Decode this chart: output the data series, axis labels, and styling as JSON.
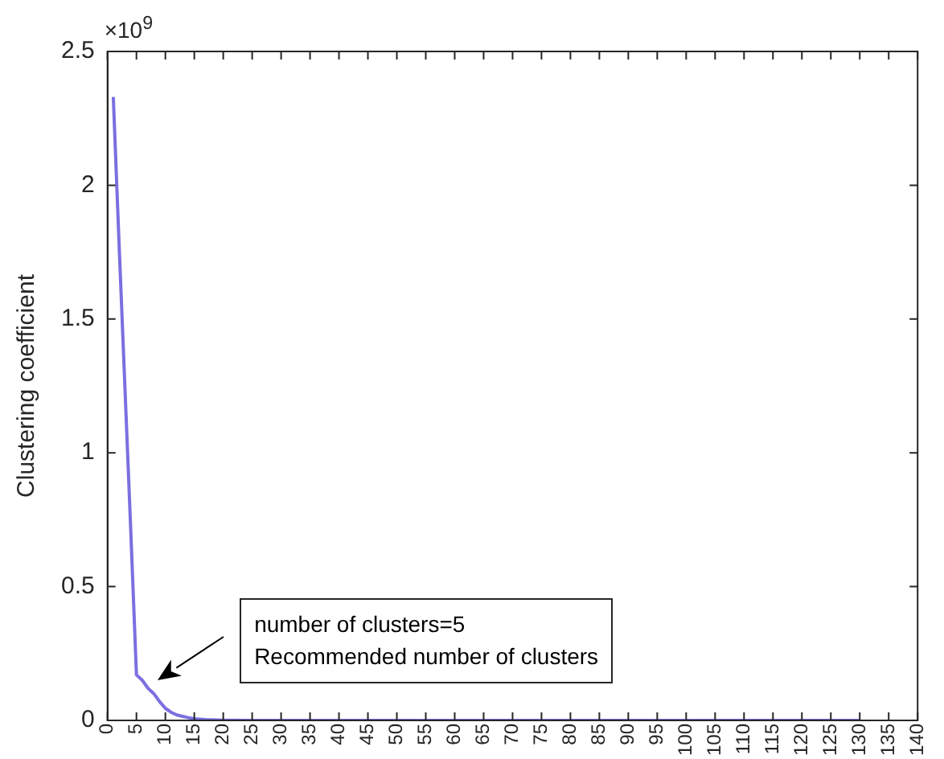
{
  "chart_data": {
    "type": "line",
    "ylabel": "Clustering coefficient",
    "x": [
      1,
      2,
      3,
      4,
      5,
      6,
      7,
      8,
      9,
      10,
      11,
      12,
      13,
      14,
      15,
      17,
      20,
      25,
      30,
      40,
      50,
      60,
      70,
      80,
      90,
      100,
      110,
      120,
      130
    ],
    "series": [
      {
        "color": "#7b6fe0",
        "values": [
          2.33,
          1.78,
          1.25,
          0.72,
          0.17,
          0.15,
          0.12,
          0.1,
          0.07,
          0.045,
          0.03,
          0.02,
          0.015,
          0.01,
          0.006,
          0.003,
          0.001,
          0,
          0,
          0,
          0,
          0,
          0,
          0,
          0,
          0,
          0,
          0,
          0
        ]
      }
    ],
    "xlim": [
      0,
      140
    ],
    "xticks": [
      0,
      5,
      10,
      15,
      20,
      25,
      30,
      35,
      40,
      45,
      50,
      55,
      60,
      65,
      70,
      75,
      80,
      85,
      90,
      95,
      100,
      105,
      110,
      115,
      120,
      125,
      130,
      135,
      140
    ],
    "ylim": [
      0,
      2.5
    ],
    "yticks": [
      0,
      0.5,
      1,
      1.5,
      2,
      2.5
    ],
    "grid": false,
    "legend": false,
    "marker": "none",
    "line_style": "solid",
    "annotations": [
      "×10$^{9}$",
      "number of clusters=5\nRecommended number of clusters"
    ]
  }
}
